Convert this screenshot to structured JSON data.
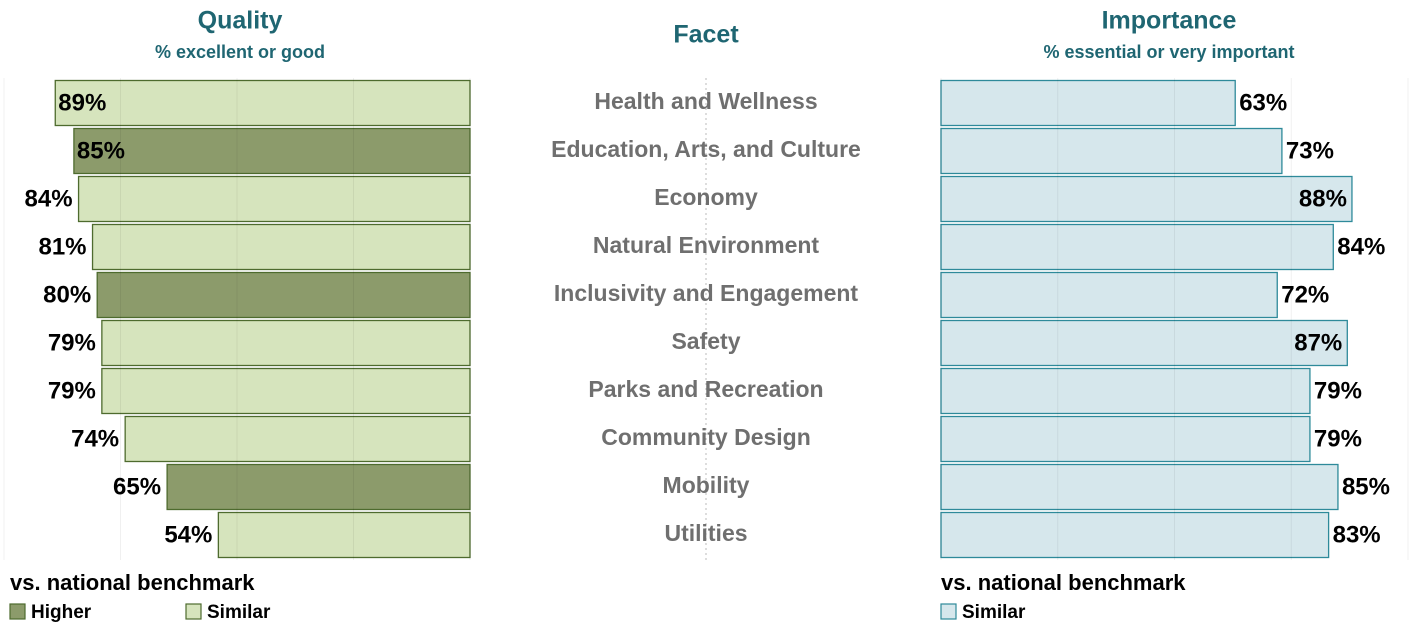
{
  "facets": {
    "title": "Facet",
    "categories": [
      "Health and Wellness",
      "Education, Arts, and Culture",
      "Economy",
      "Natural Environment",
      "Inclusivity and Engagement",
      "Safety",
      "Parks and Recreation",
      "Community Design",
      "Mobility",
      "Utilities"
    ]
  },
  "chart_data": [
    {
      "type": "bar",
      "direction": "left",
      "title": "Quality",
      "subtitle": "% excellent or good",
      "values": [
        89,
        85,
        84,
        81,
        80,
        79,
        79,
        74,
        65,
        54
      ],
      "value_labels": [
        "89%",
        "85%",
        "84%",
        "81%",
        "80%",
        "79%",
        "79%",
        "74%",
        "65%",
        "54%"
      ],
      "colors": [
        "#d6e4bd",
        "#8c9b6b",
        "#d6e4bd",
        "#d6e4bd",
        "#8c9b6b",
        "#d6e4bd",
        "#d6e4bd",
        "#d6e4bd",
        "#8c9b6b",
        "#d6e4bd"
      ],
      "edge_color": "#4e6b2e",
      "xlim": [
        0,
        100
      ],
      "xticks": [
        0,
        25,
        50,
        75,
        100
      ],
      "grid": true,
      "legend": {
        "title": "vs. national benchmark",
        "items": [
          {
            "name": "Higher",
            "color": "#8c9b6b"
          },
          {
            "name": "Similar",
            "color": "#d6e4bd"
          }
        ]
      }
    },
    {
      "type": "bar",
      "direction": "right",
      "title": "Importance",
      "subtitle": "% essential or very important",
      "values": [
        63,
        73,
        88,
        84,
        72,
        87,
        79,
        79,
        85,
        83
      ],
      "value_labels": [
        "63%",
        "73%",
        "88%",
        "84%",
        "72%",
        "87%",
        "79%",
        "79%",
        "85%",
        "83%"
      ],
      "colors": [
        "#d6e7ec",
        "#d6e7ec",
        "#d6e7ec",
        "#d6e7ec",
        "#d6e7ec",
        "#d6e7ec",
        "#d6e7ec",
        "#d6e7ec",
        "#d6e7ec",
        "#d6e7ec"
      ],
      "edge_color": "#2e8a9a",
      "xlim": [
        0,
        100
      ],
      "xticks": [
        0,
        25,
        50,
        75,
        100
      ],
      "grid": true,
      "legend": {
        "title": "vs. national benchmark",
        "items": [
          {
            "name": "Similar",
            "color": "#d6e7ec"
          }
        ]
      }
    }
  ]
}
